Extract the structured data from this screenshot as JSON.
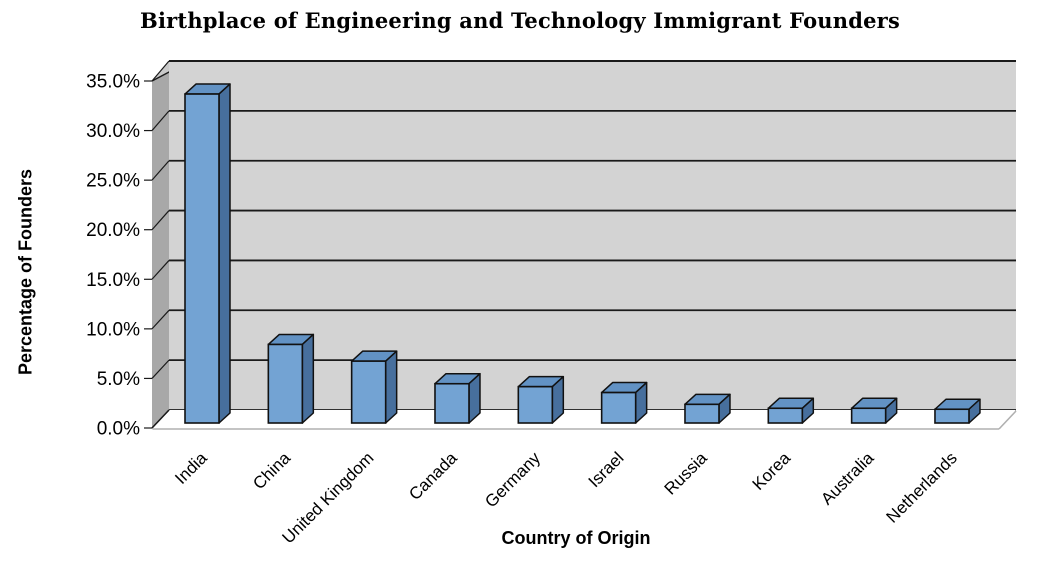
{
  "chart": {
    "title": "Birthplace of Engineering and Technology Immigrant Founders",
    "x_axis_title": "Country of Origin",
    "y_axis_title": "Percentage of Founders"
  },
  "chart_data": {
    "type": "bar",
    "effect": "3d-column",
    "title": "Birthplace of Engineering and Technology Immigrant Founders",
    "xlabel": "Country of Origin",
    "ylabel": "Percentage of Founders",
    "categories": [
      "India",
      "China",
      "United Kingdom",
      "Canada",
      "Germany",
      "Israel",
      "Russia",
      "Korea",
      "Australia",
      "Netherlands"
    ],
    "values": [
      33.5,
      8.0,
      6.3,
      4.0,
      3.7,
      3.1,
      1.9,
      1.5,
      1.5,
      1.4
    ],
    "value_unit": "%",
    "ylim": [
      0,
      35
    ],
    "ytick_step": 5,
    "ytick_labels": [
      "0.0%",
      "5.0%",
      "10.0%",
      "15.0%",
      "20.0%",
      "25.0%",
      "30.0%",
      "35.0%"
    ],
    "grid": "horizontal",
    "legend": false,
    "colors": {
      "bar_front": "#73A3D3",
      "bar_top": "#6292C4",
      "bar_side": "#476F9D",
      "bar_outline": "#111111",
      "back_wall": "#D3D3D3",
      "side_wall": "#A8A8A8",
      "corner_wedge": "#C9C9C9",
      "floor": "#FFFFFF",
      "gridline": "#1A1A1A",
      "floor_edge": "#B0B0B0",
      "text": "#000000"
    }
  }
}
